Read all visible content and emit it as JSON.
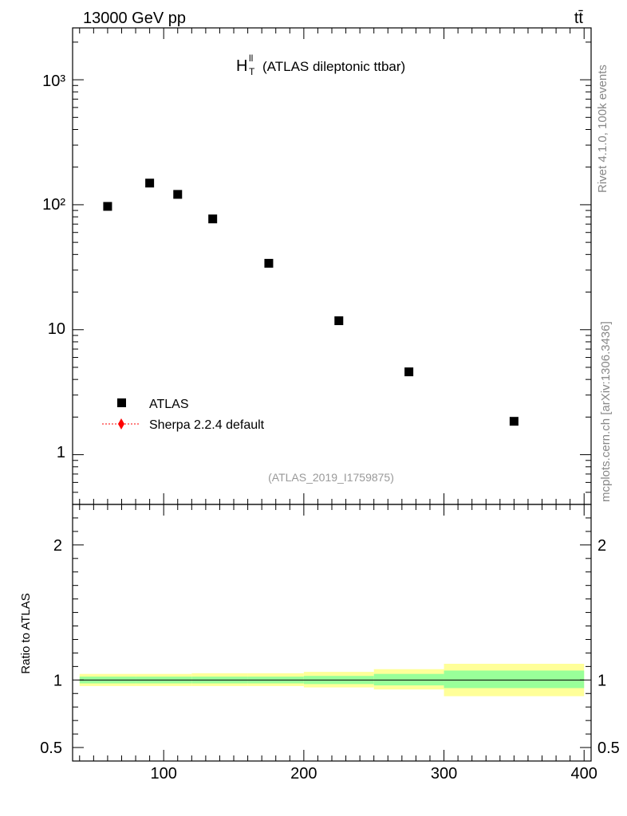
{
  "header": {
    "energy_label": "13000 GeV pp",
    "process_label": "tt̄"
  },
  "side_labels": {
    "rivet": "Rivet 4.1.0,  100k events",
    "mcplots": "mcplots.cern.ch [arXiv:1306.3436]"
  },
  "colors": {
    "data_marker": "#000000",
    "mc_line": "#ff0000",
    "band_outer": "#ffff99",
    "band_inner": "#99ff99"
  },
  "chart_data": [
    {
      "type": "scatter",
      "title_main": "H",
      "title_sup": "ll",
      "title_sub": "T",
      "title_rest": "(ATLAS dileptonic ttbar)",
      "analysis_tag": "(ATLAS_2019_I1759875)",
      "y_scale": "log",
      "ylim": [
        0.4,
        2600
      ],
      "xlim": [
        35,
        405
      ],
      "y_ticks": [
        "1",
        "10",
        "10²",
        "10³"
      ],
      "legend_position": "bottom-left",
      "series": [
        {
          "name": "ATLAS",
          "marker": "square",
          "x": [
            60,
            90,
            110,
            135,
            175,
            225,
            275,
            350
          ],
          "y": [
            97,
            149,
            121,
            77,
            34,
            11.8,
            4.6,
            1.85
          ]
        },
        {
          "name": "Sherpa 2.2.4 default",
          "marker": "diamond",
          "line": "dotted",
          "x": [],
          "y": []
        }
      ]
    },
    {
      "type": "area",
      "ylabel": "Ratio to ATLAS",
      "xlim": [
        35,
        405
      ],
      "ylim": [
        0.4,
        2.3
      ],
      "y_ticks": [
        {
          "value": 0.5,
          "label": "0.5"
        },
        {
          "value": 1,
          "label": "1"
        },
        {
          "value": 2,
          "label": "2"
        }
      ],
      "x_ticks": [
        {
          "value": 100,
          "label": "100"
        },
        {
          "value": 200,
          "label": "200"
        },
        {
          "value": 300,
          "label": "300"
        },
        {
          "value": 400,
          "label": "400"
        }
      ],
      "bins": [
        40,
        80,
        120,
        160,
        200,
        250,
        300,
        400
      ],
      "outer_band": [
        [
          0.955,
          1.045
        ],
        [
          0.955,
          1.045
        ],
        [
          0.955,
          1.05
        ],
        [
          0.955,
          1.05
        ],
        [
          0.945,
          1.06
        ],
        [
          0.93,
          1.08
        ],
        [
          0.88,
          1.12
        ]
      ],
      "inner_band": [
        [
          0.975,
          1.025
        ],
        [
          0.975,
          1.025
        ],
        [
          0.975,
          1.025
        ],
        [
          0.975,
          1.025
        ],
        [
          0.97,
          1.03
        ],
        [
          0.96,
          1.045
        ],
        [
          0.94,
          1.07
        ]
      ],
      "reference_line": 1
    }
  ]
}
